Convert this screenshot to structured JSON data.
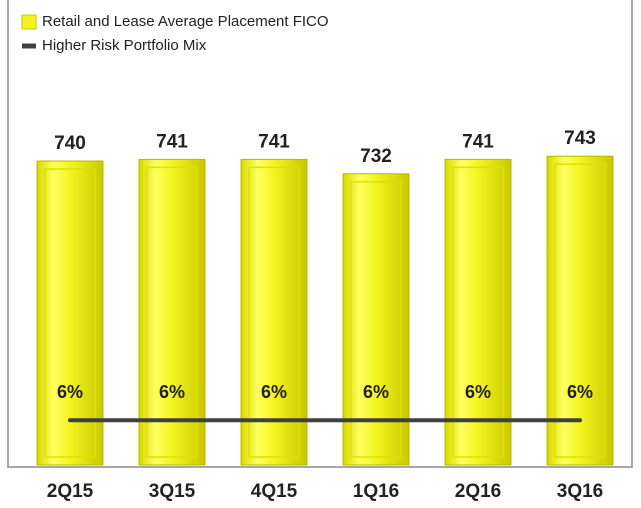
{
  "chart_data": {
    "type": "bar",
    "categories": [
      "2Q15",
      "3Q15",
      "4Q15",
      "1Q16",
      "2Q16",
      "3Q16"
    ],
    "series": [
      {
        "name": "Retail and Lease Average Placement FICO",
        "type": "bar",
        "color": "#f2f21c",
        "values": [
          740,
          741,
          741,
          732,
          741,
          743
        ]
      },
      {
        "name": "Higher Risk Portfolio Mix",
        "type": "line",
        "axis": "y2",
        "color": "#404040",
        "values": [
          6,
          6,
          6,
          6,
          6,
          6
        ],
        "value_labels": [
          "6%",
          "6%",
          "6%",
          "6%",
          "6%",
          "6%"
        ]
      }
    ],
    "ylim": [
      550,
      760
    ],
    "y2lim": [
      0,
      45
    ],
    "legend": "top-left"
  }
}
